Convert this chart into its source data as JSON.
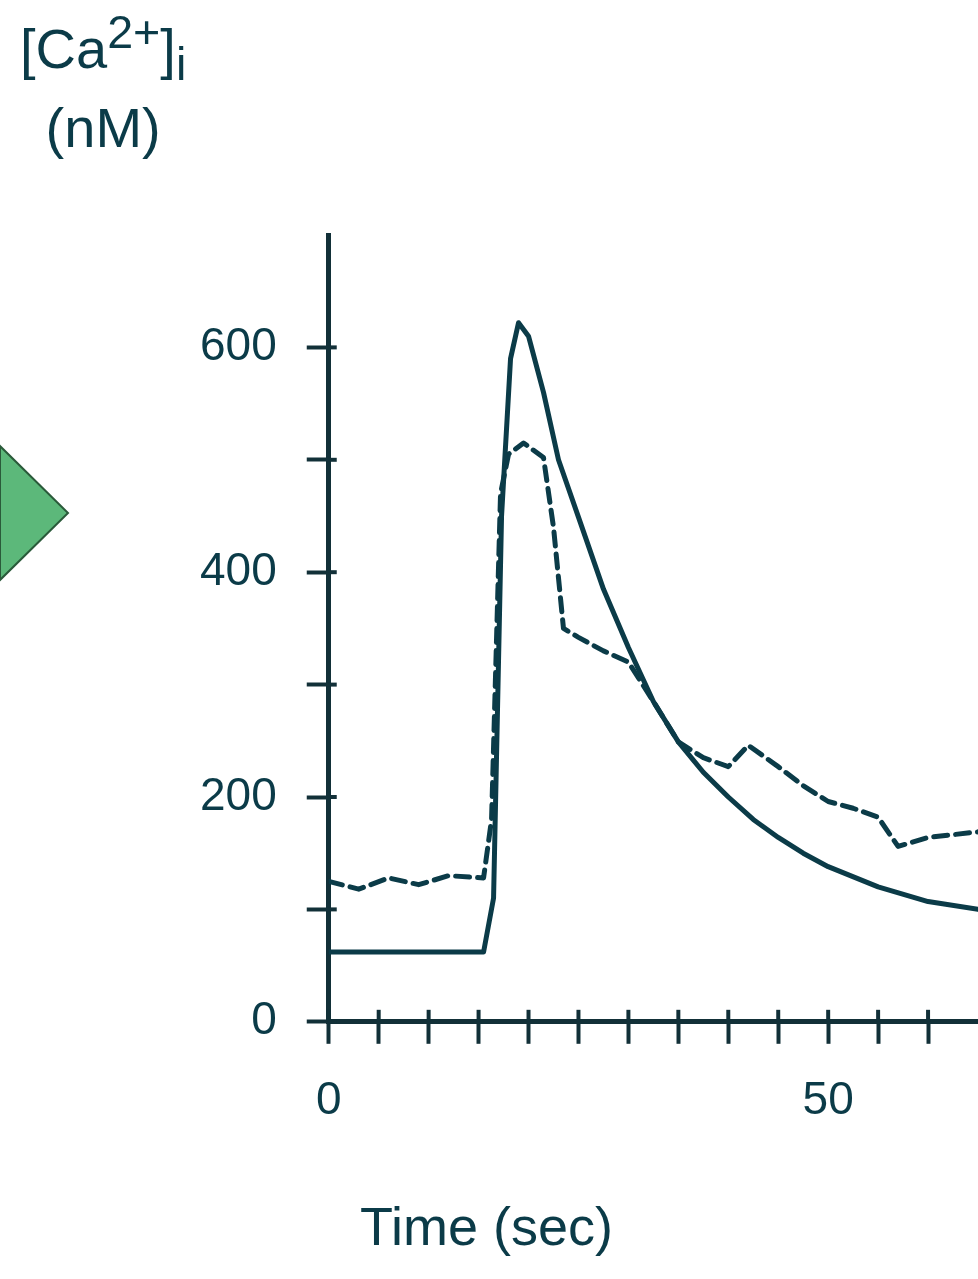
{
  "chart_data": {
    "type": "line",
    "xlabel": "Time (sec)",
    "ylabel": "[Ca$^{2+}$]$_{i}$ (nM)",
    "xlim": [
      0,
      65
    ],
    "ylim": [
      0,
      700
    ],
    "xticks": [
      0,
      {
        "value": 5,
        "label": null
      },
      {
        "value": 10,
        "label": null
      },
      {
        "value": 15,
        "label": null
      },
      {
        "value": 20,
        "label": null
      },
      {
        "value": 25,
        "label": null
      },
      {
        "value": 30,
        "label": null
      },
      {
        "value": 35,
        "label": null
      },
      {
        "value": 40,
        "label": null
      },
      {
        "value": 45,
        "label": null
      },
      50,
      {
        "value": 55,
        "label": null
      },
      {
        "value": 60,
        "label": null
      }
    ],
    "yticks": [
      0,
      {
        "value": 100,
        "label": null
      },
      200,
      {
        "value": 300,
        "label": null
      },
      400,
      {
        "value": 500,
        "label": null
      },
      600
    ],
    "grid": false,
    "legend": false,
    "marker": "none",
    "series": [
      {
        "color": "#0b3b48",
        "line_style": "solid",
        "x": [
          0,
          5,
          10,
          15.5,
          16.5,
          17.3,
          18.2,
          19,
          20,
          21.5,
          23,
          25,
          27.5,
          30,
          32.5,
          35,
          37.5,
          40,
          42.5,
          45,
          47.5,
          50,
          55,
          60,
          65
        ],
        "values": [
          62,
          62,
          62,
          62,
          110,
          450,
          590,
          622,
          610,
          560,
          500,
          449,
          385,
          333,
          285,
          249,
          222,
          200,
          180,
          164,
          150,
          138,
          120,
          107,
          100
        ]
      },
      {
        "color": "#0b3b48",
        "line_style": "dashed",
        "x": [
          0,
          3,
          6,
          9,
          12,
          15.5,
          16.3,
          17.2,
          18,
          19.5,
          21.5,
          22.5,
          23.5,
          25,
          27.5,
          30,
          32.5,
          35,
          37.5,
          40,
          42,
          45,
          47.5,
          50,
          52.5,
          55,
          57,
          60,
          65
        ],
        "values": [
          125,
          118,
          128,
          122,
          130,
          128,
          180,
          470,
          505,
          515,
          502,
          440,
          350,
          342,
          330,
          320,
          285,
          249,
          235,
          227,
          246,
          227,
          210,
          196,
          190,
          182,
          156,
          164,
          169
        ]
      }
    ]
  }
}
